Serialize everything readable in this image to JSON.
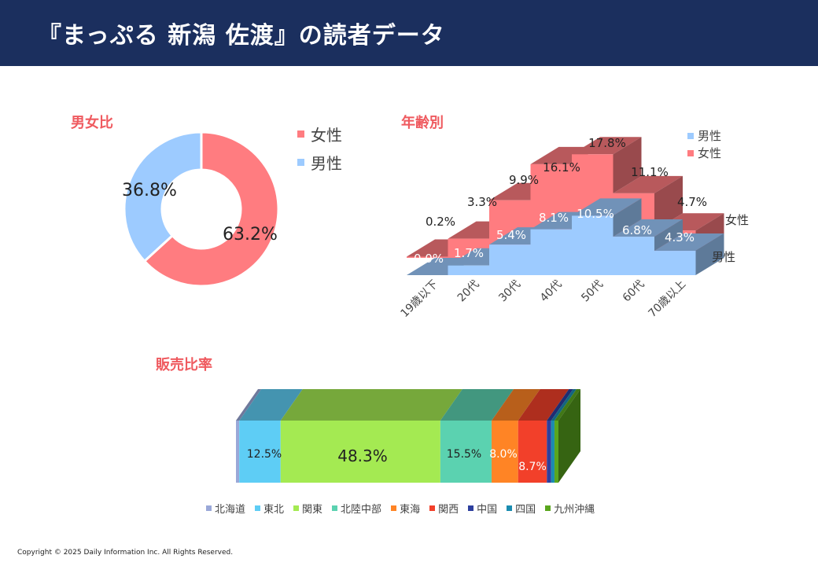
{
  "header": {
    "title": "『まっぷる 新潟 佐渡』の読者データ"
  },
  "footer": {
    "copyright": "Copyright © 2025 Daily Information Inc. All Rights Reserved."
  },
  "chart_data": [
    {
      "type": "pie",
      "title": "男女比",
      "categories": [
        "女性",
        "男性"
      ],
      "values": [
        63.2,
        36.8
      ],
      "labels": [
        "63.2%",
        "36.8%"
      ],
      "colors": [
        "#ff7c80",
        "#9dcbff"
      ],
      "legend": "right"
    },
    {
      "type": "bar",
      "title": "年齢別",
      "categories": [
        "19歳以下",
        "20代",
        "30代",
        "40代",
        "50代",
        "60代",
        "70歳以上"
      ],
      "series": [
        {
          "name": "男性",
          "values": [
            0.0,
            1.7,
            5.4,
            8.1,
            10.5,
            6.8,
            4.3
          ],
          "labels": [
            "0.0%",
            "1.7%",
            "5.4%",
            "8.1%",
            "10.5%",
            "6.8%",
            "4.3%"
          ],
          "color": "#9dcbff"
        },
        {
          "name": "女性",
          "values": [
            0.2,
            3.3,
            9.9,
            16.1,
            17.8,
            11.1,
            4.7
          ],
          "labels": [
            "0.2%",
            "3.3%",
            "9.9%",
            "16.1%",
            "17.8%",
            "11.1%",
            "4.7%"
          ],
          "color": "#ff7c80"
        }
      ],
      "ylim": [
        0,
        20
      ],
      "legend": "top-right"
    },
    {
      "type": "bar",
      "title": "販売比率",
      "categories": [
        "北海道",
        "東北",
        "関東",
        "北陸中部",
        "東海",
        "関西",
        "中国",
        "四国",
        "九州沖縄"
      ],
      "values": [
        1.0,
        12.5,
        48.3,
        15.5,
        8.0,
        8.7,
        1.3,
        1.0,
        1.2
      ],
      "labels": [
        "",
        "12.5%",
        "48.3%",
        "15.5%",
        "8.0%",
        "8.7%",
        "",
        "",
        ""
      ],
      "colors": [
        "#9aa8d8",
        "#5ecdf5",
        "#a4ea52",
        "#5bd2b0",
        "#ff8425",
        "#f2402a",
        "#2d3f9e",
        "#1a8cb0",
        "#5aa61e"
      ],
      "legend": "bottom"
    }
  ]
}
